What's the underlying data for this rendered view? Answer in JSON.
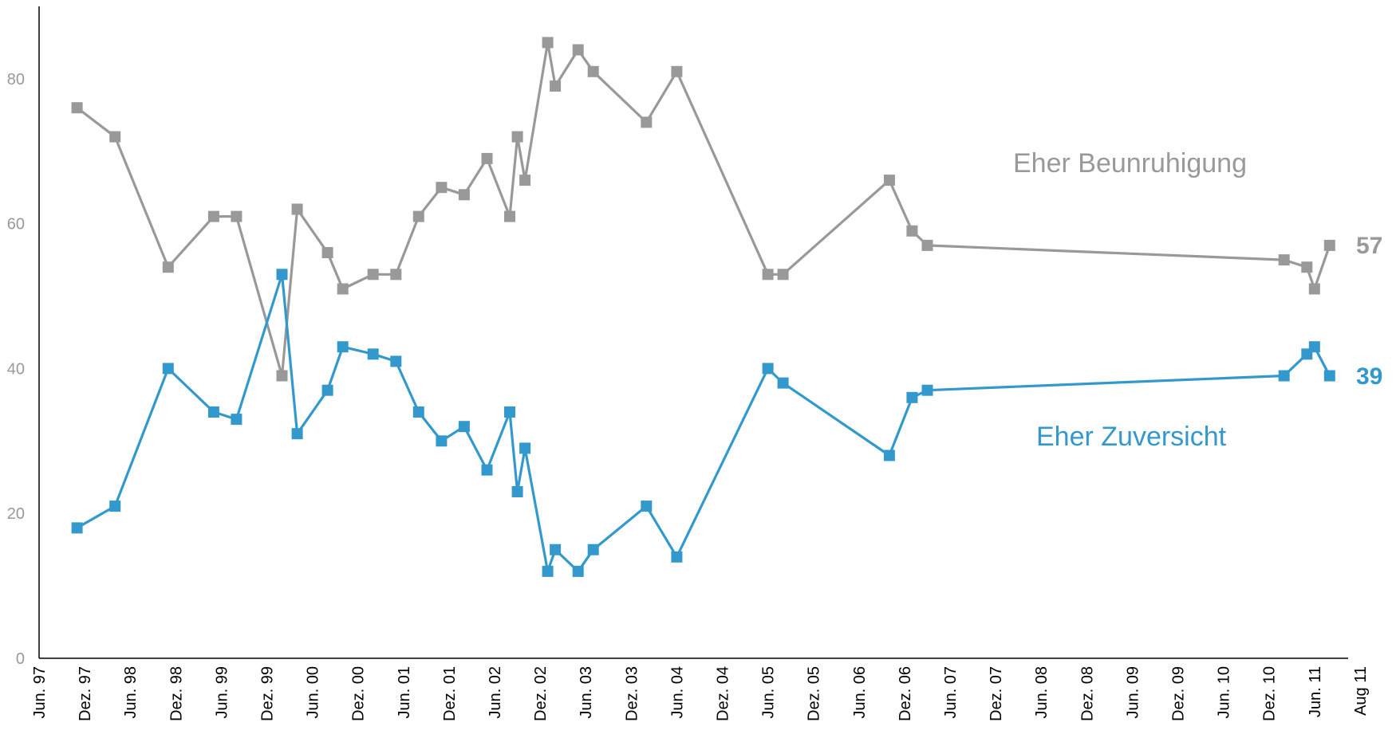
{
  "chart_data": {
    "type": "line",
    "x_tick_labels": [
      "Jun. 97",
      "Dez. 97",
      "Jun. 98",
      "Dez. 98",
      "Jun. 99",
      "Dez. 99",
      "Jun. 00",
      "Dez. 00",
      "Jun. 01",
      "Dez. 01",
      "Jun. 02",
      "Dez. 02",
      "Jun. 03",
      "Dez. 03",
      "Jun. 04",
      "Dez. 04",
      "Jun. 05",
      "Dez. 05",
      "Jun. 06",
      "Dez. 06",
      "Jun. 07",
      "Dez. 07",
      "Jun. 08",
      "Dez. 08",
      "Jun. 09",
      "Dez. 09",
      "Jun. 10",
      "Dez. 10",
      "Jun. 11",
      "Aug 11"
    ],
    "y_ticks": [
      0,
      20,
      40,
      60,
      80
    ],
    "ylim": [
      0,
      90
    ],
    "x_unit": "months since Jun. 97",
    "xlim": [
      0,
      170
    ],
    "grid": false,
    "legend": "inline labels",
    "series": [
      {
        "name": "Eher Beunruhigung",
        "color": "#999999",
        "label": "Eher Beunruhigung",
        "end_label": "57",
        "points": [
          [
            5,
            76
          ],
          [
            10,
            72
          ],
          [
            17,
            54
          ],
          [
            23,
            61
          ],
          [
            26,
            61
          ],
          [
            32,
            39
          ],
          [
            34,
            62
          ],
          [
            38,
            56
          ],
          [
            40,
            51
          ],
          [
            44,
            53
          ],
          [
            47,
            53
          ],
          [
            50,
            61
          ],
          [
            53,
            65
          ],
          [
            56,
            64
          ],
          [
            59,
            69
          ],
          [
            62,
            61
          ],
          [
            63,
            72
          ],
          [
            64,
            66
          ],
          [
            67,
            85
          ],
          [
            68,
            79
          ],
          [
            71,
            84
          ],
          [
            73,
            81
          ],
          [
            80,
            74
          ],
          [
            84,
            81
          ],
          [
            96,
            53
          ],
          [
            98,
            53
          ],
          [
            112,
            66
          ],
          [
            115,
            59
          ],
          [
            117,
            57
          ],
          [
            164,
            55
          ],
          [
            167,
            54
          ],
          [
            168,
            51
          ],
          [
            170,
            57
          ]
        ]
      },
      {
        "name": "Eher Zuversicht",
        "color": "#3399cc",
        "label": "Eher Zuversicht",
        "end_label": "39",
        "points": [
          [
            5,
            18
          ],
          [
            10,
            21
          ],
          [
            17,
            40
          ],
          [
            23,
            34
          ],
          [
            26,
            33
          ],
          [
            32,
            53
          ],
          [
            34,
            31
          ],
          [
            38,
            37
          ],
          [
            40,
            43
          ],
          [
            44,
            42
          ],
          [
            47,
            41
          ],
          [
            50,
            34
          ],
          [
            53,
            30
          ],
          [
            56,
            32
          ],
          [
            59,
            26
          ],
          [
            62,
            34
          ],
          [
            63,
            23
          ],
          [
            64,
            29
          ],
          [
            67,
            12
          ],
          [
            68,
            15
          ],
          [
            71,
            12
          ],
          [
            73,
            15
          ],
          [
            80,
            21
          ],
          [
            84,
            14
          ],
          [
            96,
            40
          ],
          [
            98,
            38
          ],
          [
            112,
            28
          ],
          [
            115,
            36
          ],
          [
            117,
            37
          ],
          [
            164,
            39
          ],
          [
            167,
            42
          ],
          [
            168,
            43
          ],
          [
            170,
            39
          ]
        ]
      }
    ]
  }
}
